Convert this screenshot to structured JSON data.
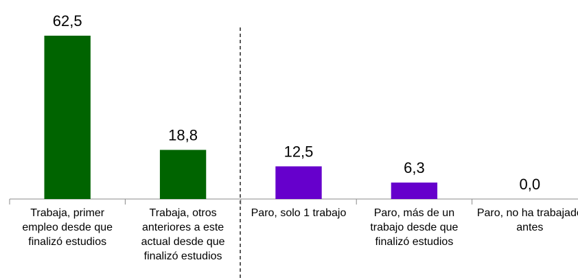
{
  "chart_data": {
    "type": "bar",
    "categories": [
      "Trabaja, primer empleo desde que finalizó estudios",
      "Trabaja, otros anteriores a este actual desde que finalizó estudios",
      "Paro, solo 1 trabajo",
      "Paro, más de un trabajo desde que finalizó estudios",
      "Paro, no ha trabajado antes"
    ],
    "values": [
      62.5,
      18.8,
      12.5,
      6.3,
      0.0
    ],
    "value_labels": [
      "62,5",
      "18,8",
      "12,5",
      "6,3",
      "0,0"
    ],
    "colors": [
      "#006400",
      "#006400",
      "#6600cc",
      "#6600cc",
      "#6600cc"
    ],
    "ylim": [
      0,
      62.5
    ]
  }
}
